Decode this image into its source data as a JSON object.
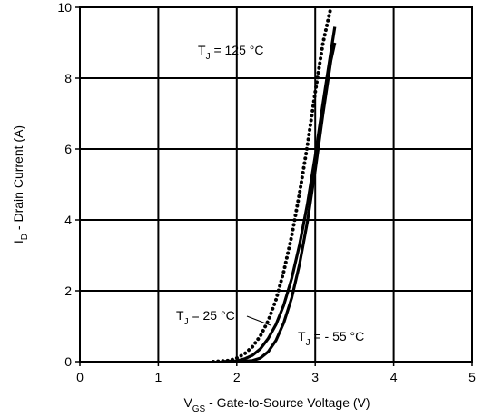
{
  "chart_data": {
    "type": "line",
    "title": "",
    "xlabel": {
      "main": "V",
      "sub": "GS",
      "rest": " - Gate-to-Source Voltage (V)"
    },
    "ylabel": {
      "main": "I",
      "sub": "D",
      "rest": " - Drain Current  (A)"
    },
    "xlim": [
      0,
      5
    ],
    "ylim": [
      0,
      10
    ],
    "xticks": [
      "0",
      "1",
      "2",
      "3",
      "4",
      "5"
    ],
    "yticks": [
      "0",
      "2",
      "4",
      "6",
      "8",
      "10"
    ],
    "grid": true,
    "series": [
      {
        "style": "dotted",
        "label": {
          "main": "T",
          "sub": "J",
          "rest": " = 125 °C"
        },
        "x": [
          1.7,
          1.9,
          2.0,
          2.1,
          2.2,
          2.3,
          2.4,
          2.5,
          2.6,
          2.7,
          2.8,
          2.9,
          3.0,
          3.1,
          3.2
        ],
        "y": [
          0.0,
          0.03,
          0.1,
          0.22,
          0.42,
          0.72,
          1.15,
          1.75,
          2.55,
          3.55,
          4.75,
          6.1,
          7.6,
          9.0,
          10.0
        ]
      },
      {
        "style": "solid",
        "label": {
          "main": "T",
          "sub": "J",
          "rest": " = 25 °C"
        },
        "x": [
          1.8,
          2.0,
          2.1,
          2.2,
          2.3,
          2.4,
          2.5,
          2.6,
          2.7,
          2.8,
          2.9,
          3.0,
          3.1,
          3.2,
          3.25
        ],
        "y": [
          0.0,
          0.02,
          0.08,
          0.18,
          0.36,
          0.65,
          1.05,
          1.6,
          2.35,
          3.3,
          4.45,
          5.8,
          7.3,
          8.75,
          9.45
        ]
      },
      {
        "style": "solid",
        "label": {
          "main": "T",
          "sub": "J",
          "rest": " = - 55 °C"
        },
        "x": [
          2.0,
          2.2,
          2.3,
          2.4,
          2.5,
          2.6,
          2.7,
          2.8,
          2.9,
          3.0,
          3.1,
          3.2,
          3.25
        ],
        "y": [
          0.0,
          0.03,
          0.1,
          0.28,
          0.6,
          1.1,
          1.8,
          2.75,
          3.95,
          5.4,
          7.0,
          8.5,
          9.0
        ]
      }
    ]
  }
}
